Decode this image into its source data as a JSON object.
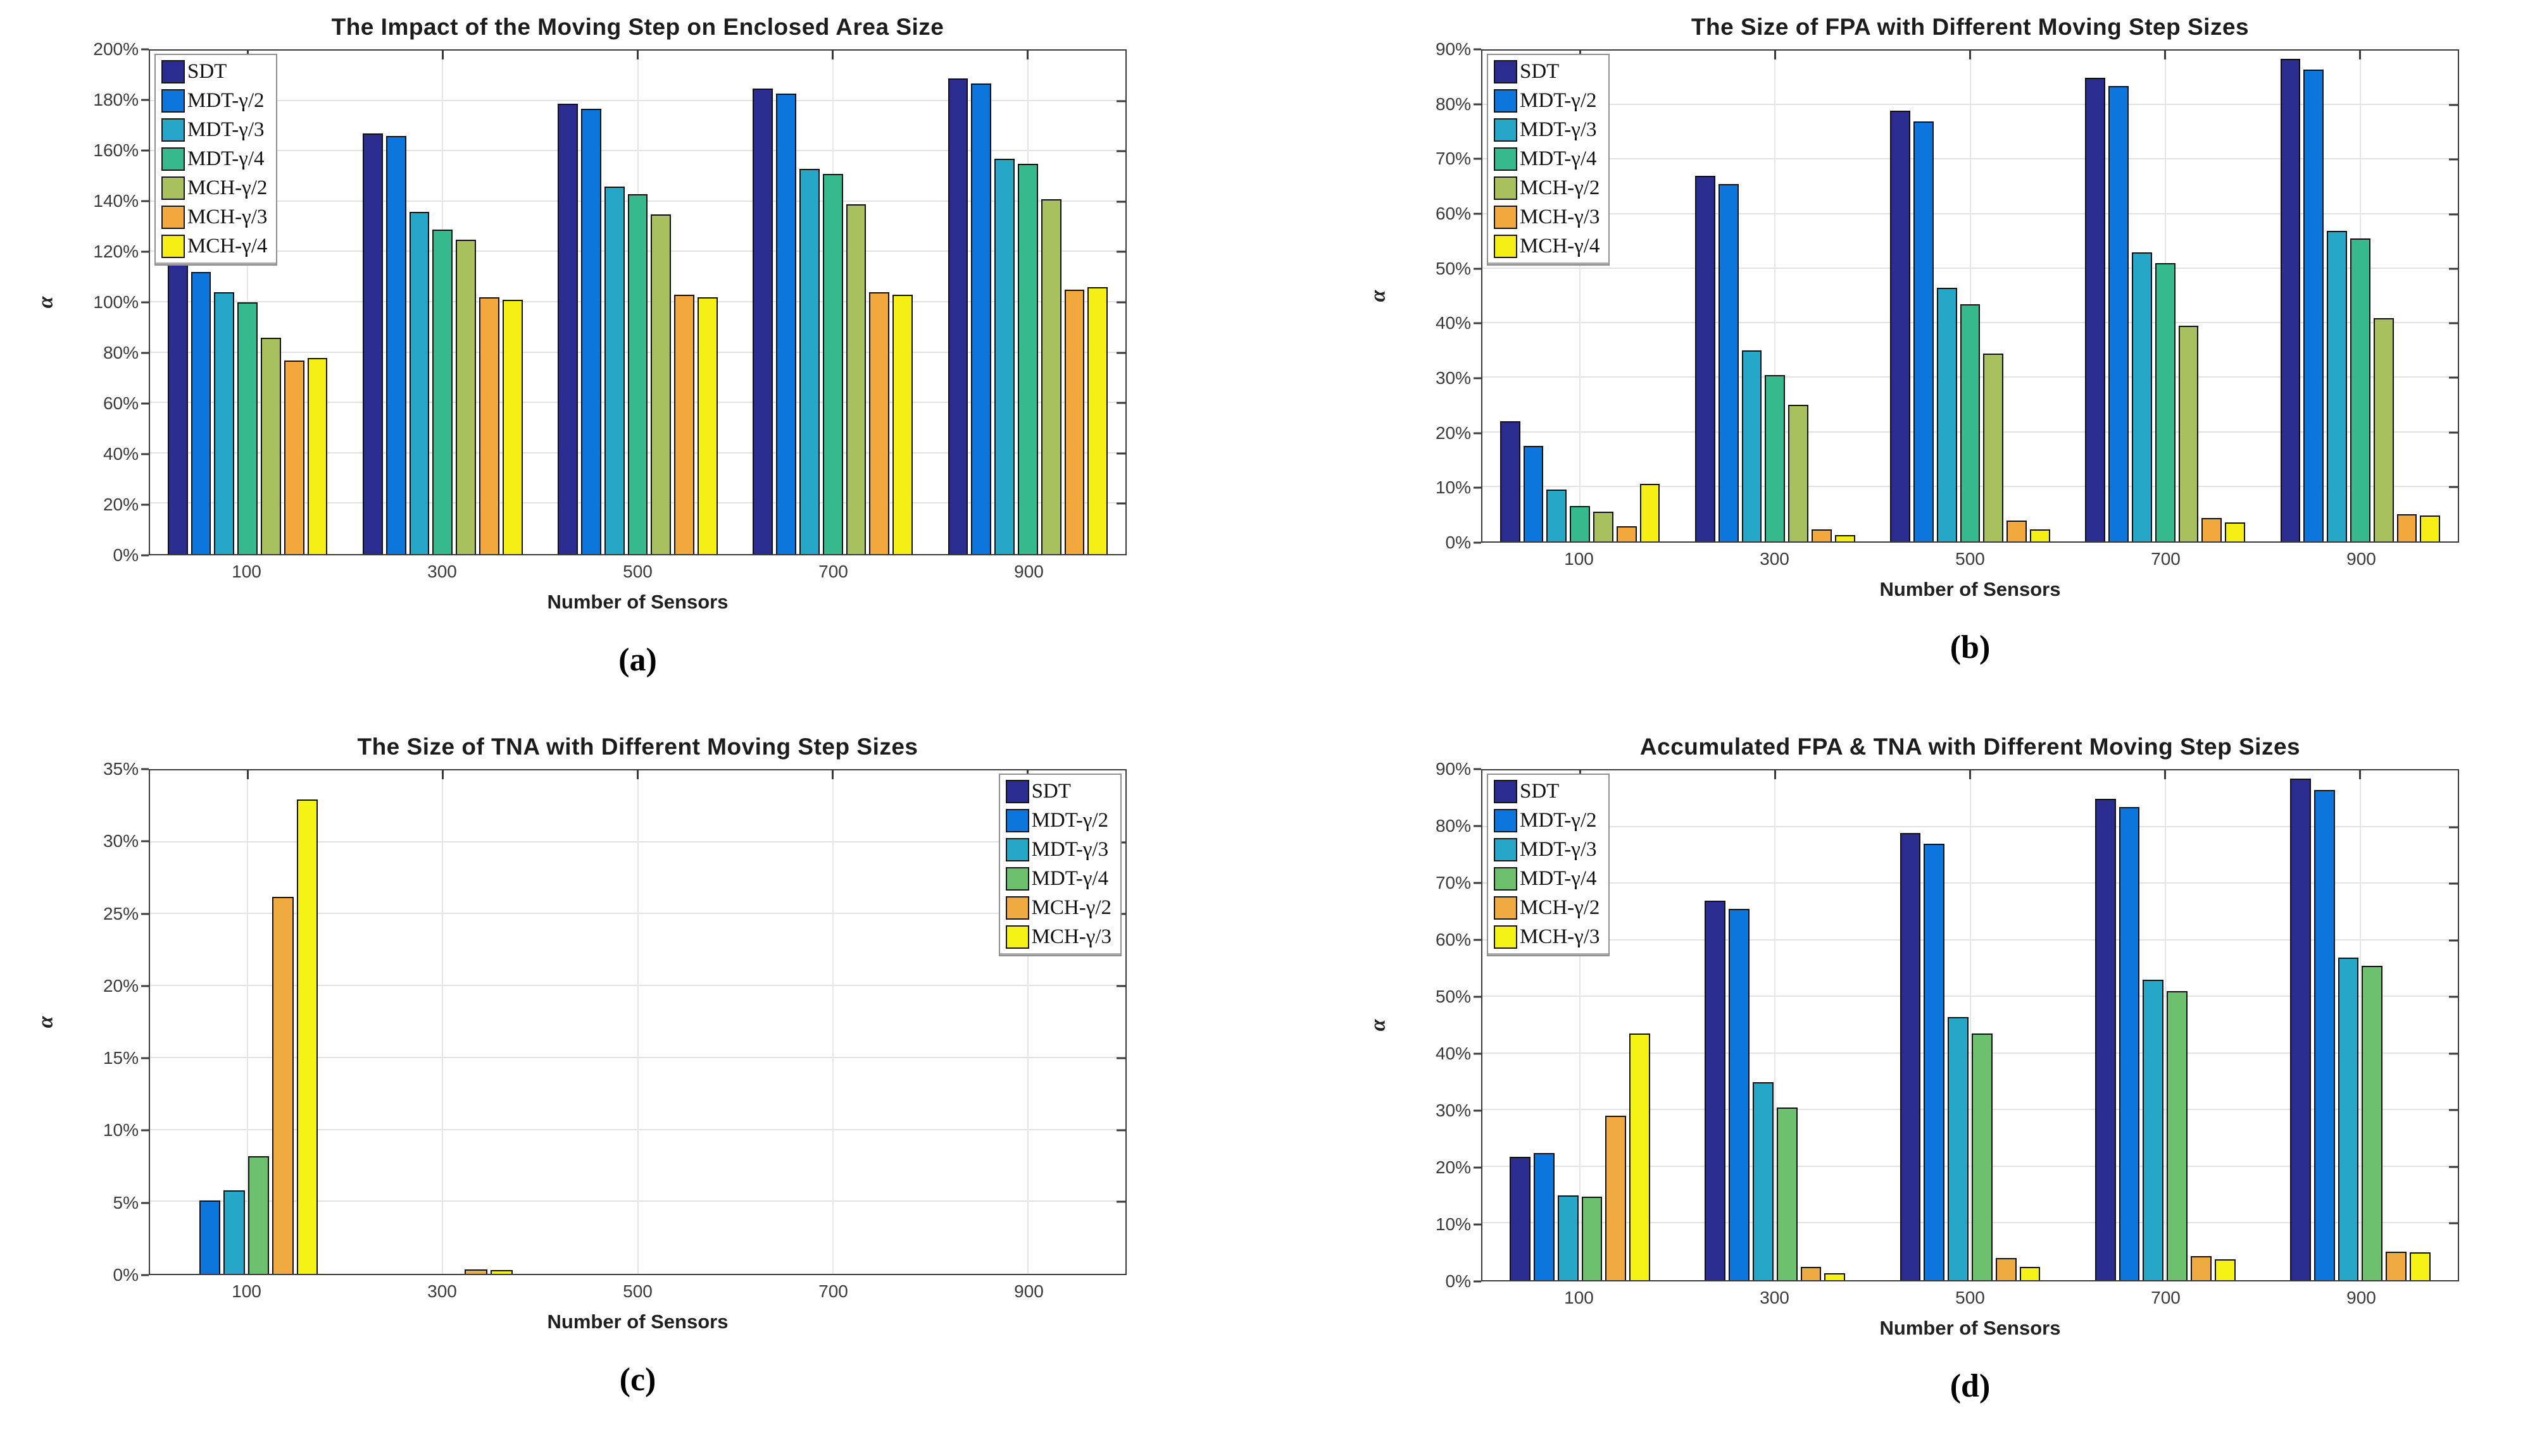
{
  "figure": {
    "background": "#ffffff"
  },
  "axis_style": {
    "grid": true,
    "box": true,
    "ytick_suffix": "%"
  },
  "chart_data": [
    {
      "type": "bar",
      "caption": "(a)",
      "title": "The Impact of the Moving Step on Enclosed Area Size",
      "xlabel": "Number of Sensors",
      "ylabel": "α",
      "categories": [
        "100",
        "300",
        "500",
        "700",
        "900"
      ],
      "ylim": [
        0,
        200
      ],
      "ytick_step": 20,
      "ytick_labels": [
        "0%",
        "20%",
        "40%",
        "60%",
        "80%",
        "100%",
        "120%",
        "140%",
        "160%",
        "180%",
        "200%"
      ],
      "grid": true,
      "legend_position": "top-left",
      "series": [
        {
          "name": "SDT",
          "color": "#2a2c8f",
          "values": [
            122,
            167,
            179,
            185,
            189
          ]
        },
        {
          "name": "MDT-γ/2",
          "color": "#0d76dd",
          "values": [
            112,
            166,
            177,
            183,
            187
          ]
        },
        {
          "name": "MDT-γ/3",
          "color": "#26a7c8",
          "values": [
            104,
            136,
            146,
            153,
            157
          ]
        },
        {
          "name": "MDT-γ/4",
          "color": "#36b98c",
          "values": [
            100,
            129,
            143,
            151,
            155
          ]
        },
        {
          "name": "MCH-γ/2",
          "color": "#a9c05f",
          "values": [
            86,
            125,
            135,
            139,
            141
          ]
        },
        {
          "name": "MCH-γ/3",
          "color": "#f3a83d",
          "values": [
            77,
            102,
            103,
            104,
            105
          ]
        },
        {
          "name": "MCH-γ/4",
          "color": "#f5ef15",
          "values": [
            78,
            101,
            102,
            103,
            106
          ]
        }
      ]
    },
    {
      "type": "bar",
      "caption": "(b)",
      "title": "The Size of FPA with Different Moving Step Sizes",
      "xlabel": "Number of Sensors",
      "ylabel": "α",
      "categories": [
        "100",
        "300",
        "500",
        "700",
        "900"
      ],
      "ylim": [
        0,
        90
      ],
      "ytick_step": 10,
      "ytick_labels": [
        "0%",
        "10%",
        "20%",
        "30%",
        "40%",
        "50%",
        "60%",
        "70%",
        "80%",
        "90%"
      ],
      "grid": true,
      "legend_position": "top-left",
      "series": [
        {
          "name": "SDT",
          "color": "#2a2c8f",
          "values": [
            22,
            67,
            79,
            85,
            88.5
          ]
        },
        {
          "name": "MDT-γ/2",
          "color": "#0d76dd",
          "values": [
            17.5,
            65.5,
            77,
            83.5,
            86.5
          ]
        },
        {
          "name": "MDT-γ/3",
          "color": "#26a7c8",
          "values": [
            9.5,
            35,
            46.5,
            53,
            57
          ]
        },
        {
          "name": "MDT-γ/4",
          "color": "#36b98c",
          "values": [
            6.5,
            30.5,
            43.5,
            51,
            55.5
          ]
        },
        {
          "name": "MCH-γ/2",
          "color": "#a9c05f",
          "values": [
            5.5,
            25,
            34.5,
            39.5,
            41
          ]
        },
        {
          "name": "MCH-γ/3",
          "color": "#f3a83d",
          "values": [
            2.8,
            2.2,
            3.8,
            4.3,
            5
          ]
        },
        {
          "name": "MCH-γ/4",
          "color": "#f5ef15",
          "values": [
            10.5,
            1.2,
            2.2,
            3.5,
            4.8
          ]
        }
      ]
    },
    {
      "type": "bar",
      "caption": "(c)",
      "title": "The Size of TNA with Different Moving Step Sizes",
      "xlabel": "Number of Sensors",
      "ylabel": "α",
      "categories": [
        "100",
        "300",
        "500",
        "700",
        "900"
      ],
      "ylim": [
        0,
        35
      ],
      "ytick_step": 5,
      "ytick_labels": [
        "0%",
        "5%",
        "10%",
        "15%",
        "20%",
        "25%",
        "30%",
        "35%"
      ],
      "grid": true,
      "legend_position": "top-right",
      "series": [
        {
          "name": "SDT",
          "color": "#2a2c8f",
          "values": [
            0,
            0,
            0,
            0,
            0
          ]
        },
        {
          "name": "MDT-γ/2",
          "color": "#0d76dd",
          "values": [
            5.1,
            0,
            0,
            0,
            0
          ]
        },
        {
          "name": "MDT-γ/3",
          "color": "#26a7c8",
          "values": [
            5.8,
            0,
            0,
            0,
            0
          ]
        },
        {
          "name": "MDT-γ/4",
          "color": "#6cc06e",
          "values": [
            8.2,
            0,
            0,
            0,
            0
          ]
        },
        {
          "name": "MCH-γ/2",
          "color": "#efab42",
          "values": [
            26.2,
            0.3,
            0,
            0,
            0
          ]
        },
        {
          "name": "MCH-γ/3",
          "color": "#f5f215",
          "values": [
            33,
            0.25,
            0,
            0,
            0
          ]
        }
      ]
    },
    {
      "type": "bar",
      "caption": "(d)",
      "title": "Accumulated FPA & TNA with Different Moving Step Sizes",
      "xlabel": "Number of Sensors",
      "ylabel": "α",
      "categories": [
        "100",
        "300",
        "500",
        "700",
        "900"
      ],
      "ylim": [
        0,
        90
      ],
      "ytick_step": 10,
      "ytick_labels": [
        "0%",
        "10%",
        "20%",
        "30%",
        "40%",
        "50%",
        "60%",
        "70%",
        "80%",
        "90%"
      ],
      "grid": true,
      "legend_position": "top-left",
      "series": [
        {
          "name": "SDT",
          "color": "#2a2c8f",
          "values": [
            21.8,
            67,
            79,
            85,
            88.5
          ]
        },
        {
          "name": "MDT-γ/2",
          "color": "#0d76dd",
          "values": [
            22.5,
            65.5,
            77,
            83.5,
            86.5
          ]
        },
        {
          "name": "MDT-γ/3",
          "color": "#26a7c8",
          "values": [
            15,
            35,
            46.5,
            53,
            57
          ]
        },
        {
          "name": "MDT-γ/4",
          "color": "#6cc06e",
          "values": [
            14.7,
            30.5,
            43.5,
            51,
            55.5
          ]
        },
        {
          "name": "MCH-γ/2",
          "color": "#efab42",
          "values": [
            29,
            2.3,
            3.9,
            4.3,
            5
          ]
        },
        {
          "name": "MCH-γ/3",
          "color": "#f5f215",
          "values": [
            43.5,
            1.2,
            2.3,
            3.7,
            4.9
          ]
        }
      ]
    }
  ]
}
